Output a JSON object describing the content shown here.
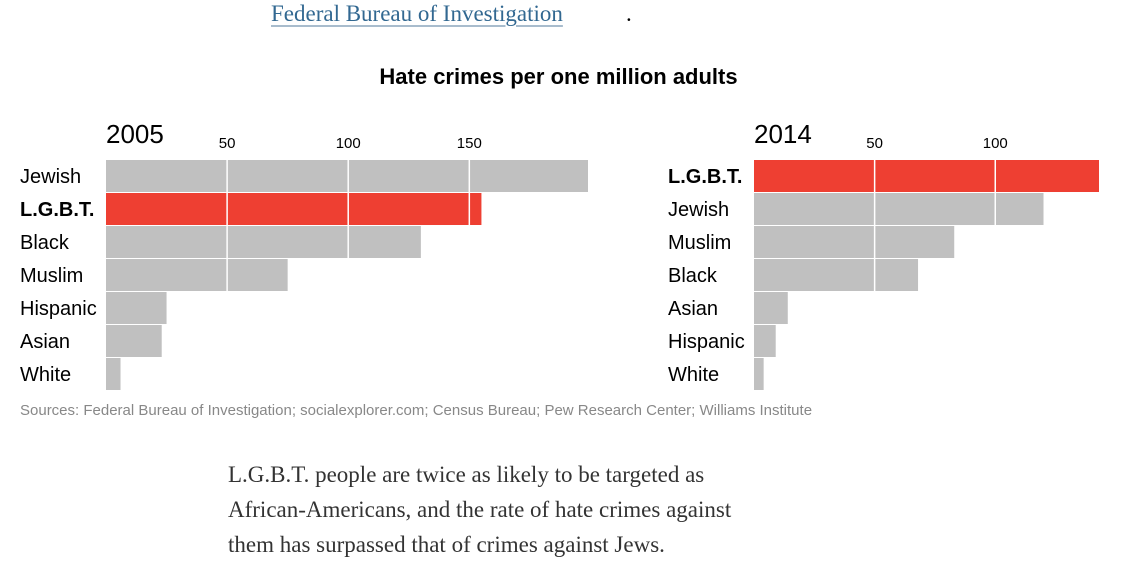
{
  "top_link": {
    "text": "Federal Bureau of Investigation",
    "trailing": "."
  },
  "chart_title": "Hate crimes per one million adults",
  "chart_data": [
    {
      "type": "bar",
      "orientation": "horizontal",
      "title": "2005",
      "xticks": [
        50,
        100,
        150
      ],
      "xlim": [
        0,
        199
      ],
      "highlight": "L.G.B.T.",
      "colors": {
        "default": "#c0c0c0",
        "highlight": "#ee3f32"
      },
      "categories": [
        "Jewish",
        "L.G.B.T.",
        "Black",
        "Muslim",
        "Hispanic",
        "Asian",
        "White"
      ],
      "values": [
        199,
        155,
        130,
        75,
        25,
        23,
        6
      ]
    },
    {
      "type": "bar",
      "orientation": "horizontal",
      "title": "2014",
      "xticks": [
        50,
        100
      ],
      "xlim": [
        0,
        143
      ],
      "highlight": "L.G.B.T.",
      "colors": {
        "default": "#c0c0c0",
        "highlight": "#ee3f32"
      },
      "categories": [
        "L.G.B.T.",
        "Jewish",
        "Muslim",
        "Black",
        "Asian",
        "Hispanic",
        "White"
      ],
      "values": [
        143,
        120,
        83,
        68,
        14,
        9,
        4
      ]
    }
  ],
  "source": "Sources: Federal Bureau of Investigation; socialexplorer.com; Census Bureau; Pew Research Center; Williams Institute",
  "paragraph": [
    "L.G.B.T. people are twice as likely to be targeted as",
    "African-Americans, and the rate of hate crimes against",
    "them has surpassed that of crimes against Jews."
  ]
}
